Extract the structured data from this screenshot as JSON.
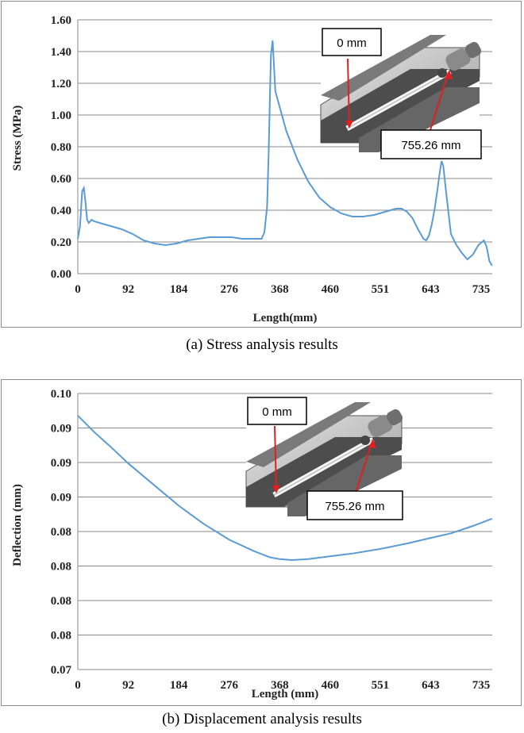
{
  "colors": {
    "series": "#5b9bd5",
    "grid": "#8a8a8a",
    "arrow": "#e0201f",
    "frame": "#8c8c8c"
  },
  "captions": {
    "a": "(a) Stress analysis results",
    "b": "(b) Displacement analysis results"
  },
  "inset": {
    "start_label": "0 mm",
    "end_label": "755.26 mm"
  },
  "chart_data": [
    {
      "type": "line",
      "title": "",
      "xlabel": "Length(mm)",
      "ylabel": "Stress (MPa)",
      "xlim": [
        0,
        755.26
      ],
      "ylim": [
        0,
        1.6
      ],
      "x_ticks": [
        "0",
        "92",
        "184",
        "276",
        "368",
        "460",
        "551",
        "643",
        "735"
      ],
      "y_ticks": [
        "0.00",
        "0.20",
        "0.40",
        "0.60",
        "0.80",
        "1.00",
        "1.20",
        "1.40",
        "1.60"
      ],
      "grid": true,
      "series": [
        {
          "x": [
            0,
            4,
            8,
            11,
            14,
            17,
            20,
            25,
            30,
            40,
            60,
            80,
            100,
            120,
            140,
            160,
            180,
            200,
            220,
            240,
            260,
            280,
            300,
            320,
            335,
            340,
            345,
            348,
            350,
            352,
            355,
            360,
            368,
            380,
            400,
            420,
            440,
            460,
            480,
            500,
            520,
            540,
            560,
            580,
            590,
            600,
            610,
            620,
            630,
            635,
            640,
            645,
            650,
            655,
            660,
            663,
            666,
            670,
            675,
            680,
            690,
            700,
            710,
            720,
            730,
            740,
            745,
            750,
            755
          ],
          "y": [
            0.22,
            0.3,
            0.52,
            0.54,
            0.45,
            0.34,
            0.32,
            0.34,
            0.33,
            0.32,
            0.3,
            0.28,
            0.25,
            0.21,
            0.19,
            0.18,
            0.19,
            0.21,
            0.22,
            0.23,
            0.23,
            0.23,
            0.22,
            0.22,
            0.22,
            0.26,
            0.42,
            0.78,
            1.1,
            1.38,
            1.47,
            1.15,
            1.05,
            0.9,
            0.72,
            0.58,
            0.48,
            0.42,
            0.38,
            0.36,
            0.36,
            0.37,
            0.39,
            0.41,
            0.41,
            0.39,
            0.35,
            0.28,
            0.22,
            0.21,
            0.24,
            0.31,
            0.4,
            0.52,
            0.65,
            0.71,
            0.68,
            0.55,
            0.4,
            0.25,
            0.18,
            0.13,
            0.09,
            0.12,
            0.18,
            0.21,
            0.17,
            0.08,
            0.05
          ]
        }
      ]
    },
    {
      "type": "line",
      "title": "",
      "xlabel": "Length (mm)",
      "ylabel": "Deflection (mm)",
      "xlim": [
        0,
        755.26
      ],
      "ylim": [
        0.07,
        0.1
      ],
      "x_ticks": [
        "0",
        "92",
        "184",
        "276",
        "368",
        "460",
        "551",
        "643",
        "735"
      ],
      "y_ticks": [
        "0.07",
        "0.08",
        "0.08",
        "0.08",
        "0.08",
        "0.09",
        "0.09",
        "0.09",
        "0.10"
      ],
      "grid": true,
      "series": [
        {
          "x": [
            0,
            10,
            30,
            60,
            92,
            130,
            184,
            230,
            276,
            320,
            350,
            368,
            390,
            420,
            460,
            500,
            551,
            600,
            643,
            680,
            720,
            755
          ],
          "y": [
            0.0976,
            0.097,
            0.0958,
            0.0942,
            0.0924,
            0.0905,
            0.0878,
            0.0858,
            0.0841,
            0.0829,
            0.0822,
            0.082,
            0.0819,
            0.082,
            0.0823,
            0.0826,
            0.0831,
            0.0837,
            0.0843,
            0.0848,
            0.0856,
            0.0864
          ]
        }
      ]
    }
  ]
}
